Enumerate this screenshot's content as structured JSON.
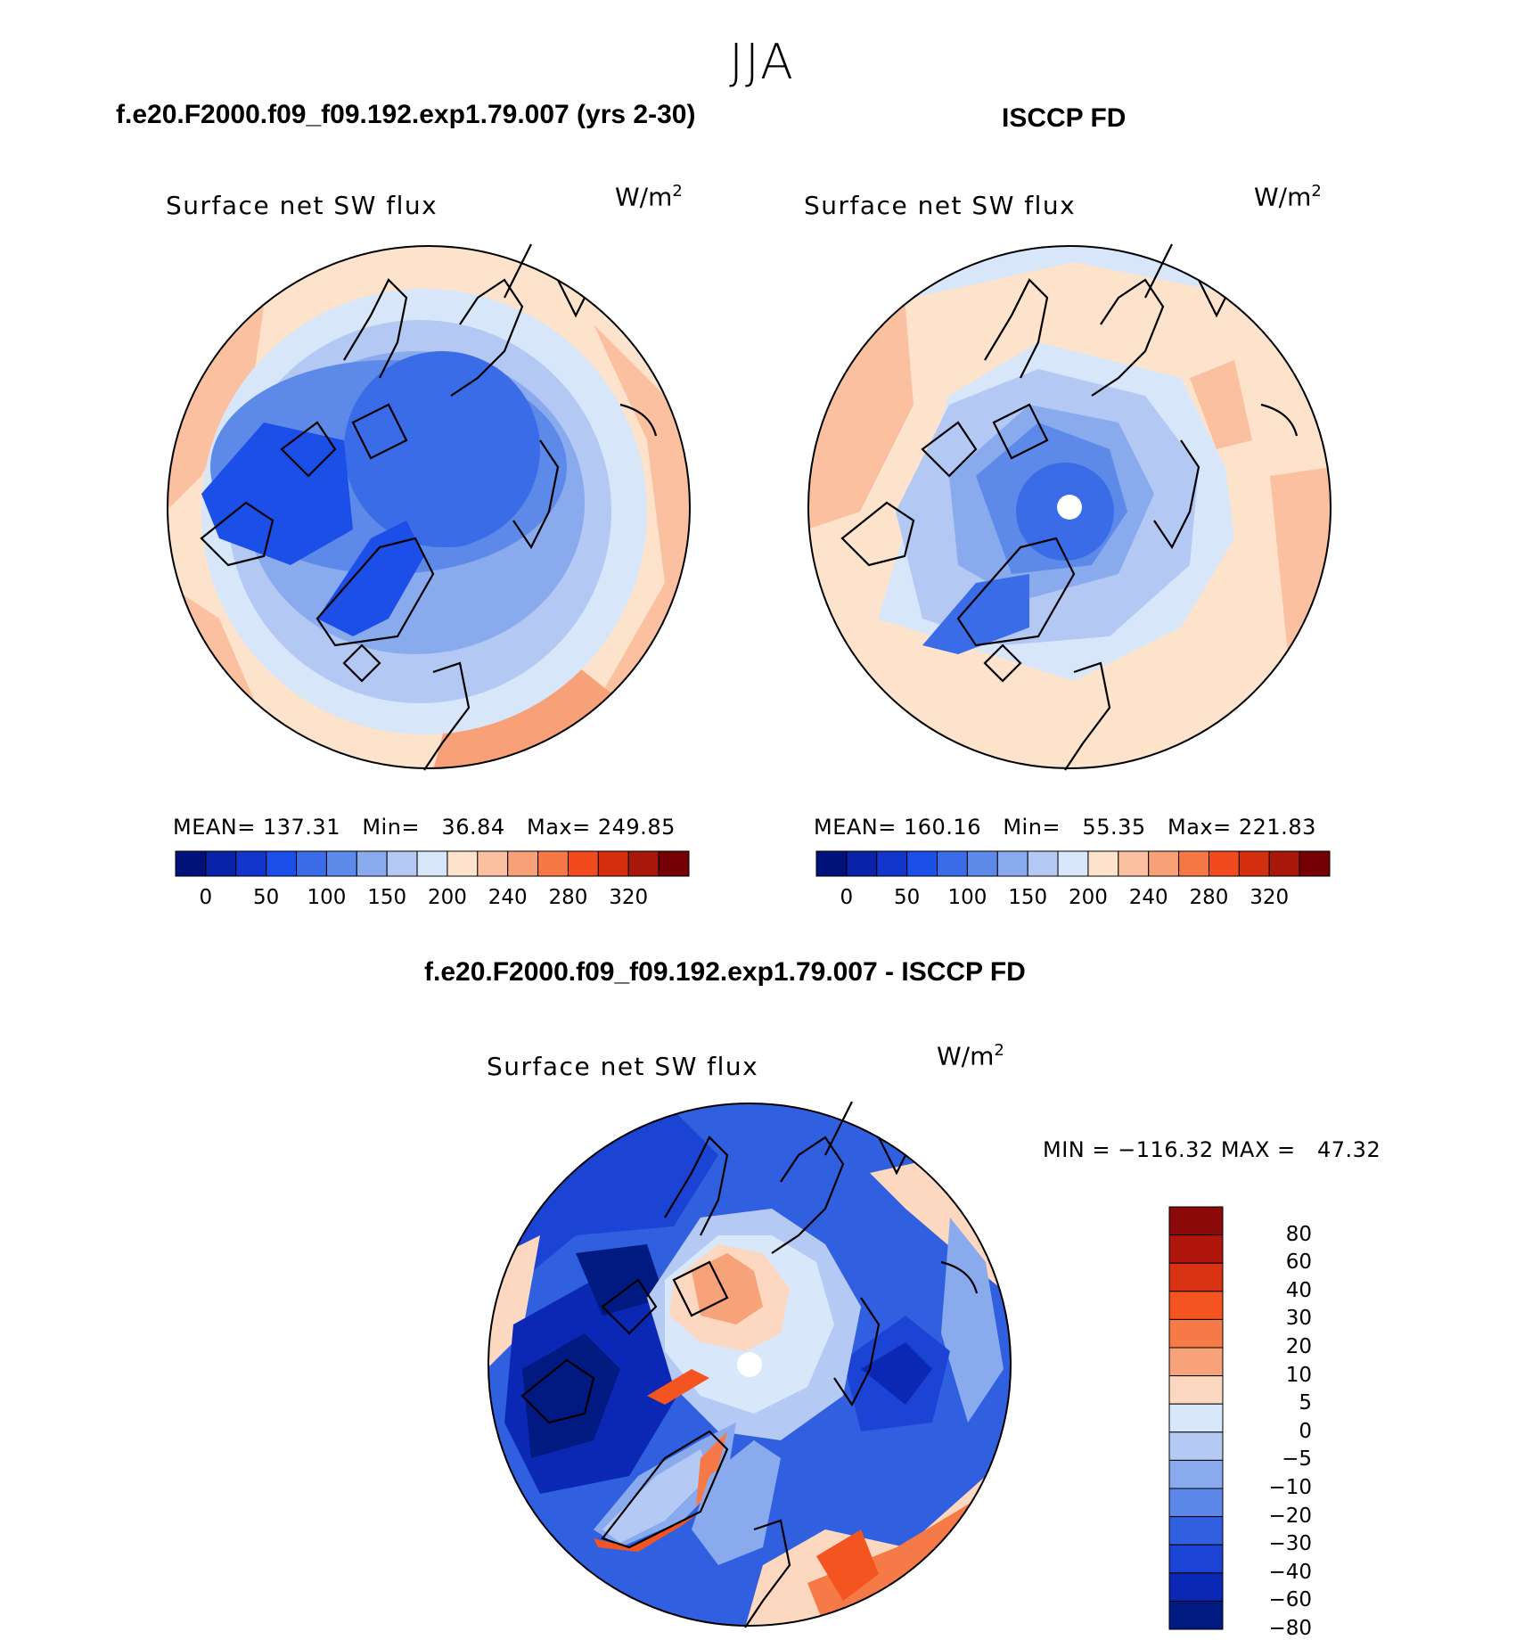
{
  "season": "JJA",
  "panels": [
    {
      "id": "model",
      "case_title": "f.e20.F2000.f09_f09.192.exp1.79.007 (yrs 2-30)",
      "variable": "Surface net SW flux",
      "units_base": "W/m",
      "units_exp": "2",
      "stats_text": "MEAN= 137.31   Min=   36.84   Max= 249.85",
      "mean": 137.31,
      "min": 36.84,
      "max": 249.85
    },
    {
      "id": "obs",
      "case_title": "ISCCP FD",
      "variable": "Surface net SW flux",
      "units_base": "W/m",
      "units_exp": "2",
      "stats_text": "MEAN= 160.16   Min=   55.35   Max= 221.83",
      "mean": 160.16,
      "min": 55.35,
      "max": 221.83
    }
  ],
  "abs_colorbar": {
    "colors": [
      "#00127a",
      "#0822a8",
      "#1236cc",
      "#1c4ee8",
      "#3a6ce8",
      "#5d8ae8",
      "#8aaaee",
      "#b4c8f4",
      "#d8e6fa",
      "#fde2cc",
      "#fbc0a0",
      "#f8a078",
      "#f57744",
      "#f04a1e",
      "#d42e10",
      "#a8180a",
      "#740006"
    ],
    "labels": [
      "0",
      "50",
      "100",
      "150",
      "200",
      "240",
      "280",
      "320"
    ]
  },
  "difference": {
    "title": "f.e20.F2000.f09_f09.192.exp1.79.007 - ISCCP FD",
    "variable": "Surface net SW flux",
    "units_base": "W/m",
    "units_exp": "2",
    "minmax_text": "MIN = −116.32 MAX =   47.32",
    "min": -116.32,
    "max": 47.32,
    "colorbar": {
      "colors": [
        "#8c0a0a",
        "#b0160c",
        "#d83414",
        "#f45420",
        "#f67a48",
        "#f8a27a",
        "#fdd8c0",
        "#d8e8fa",
        "#b4caf4",
        "#8aaaee",
        "#5b88e8",
        "#3060e0",
        "#1c44d4",
        "#0a28b4",
        "#001a82"
      ],
      "labels": [
        "80",
        "60",
        "40",
        "30",
        "20",
        "10",
        "5",
        "0",
        "−5",
        "−10",
        "−20",
        "−30",
        "−40",
        "−60",
        "−80"
      ]
    }
  }
}
